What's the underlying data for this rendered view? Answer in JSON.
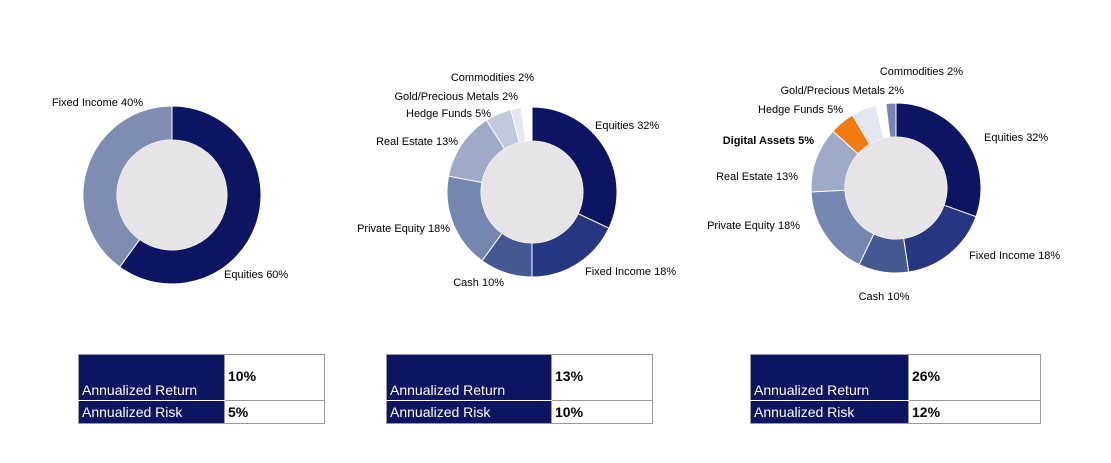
{
  "chart_data": [
    {
      "type": "pie",
      "variant": "donut",
      "slices": [
        {
          "label": "Equities 60%",
          "value": 60,
          "color": "#0d1563"
        },
        {
          "label": "Fixed Income 40%",
          "value": 40,
          "color": "#7f8db3"
        }
      ]
    },
    {
      "type": "pie",
      "variant": "donut",
      "slices": [
        {
          "label": "Equities 32%",
          "value": 32,
          "color": "#0d1563"
        },
        {
          "label": "Fixed Income 18%",
          "value": 18,
          "color": "#263680"
        },
        {
          "label": "Cash 10%",
          "value": 10,
          "color": "#465892"
        },
        {
          "label": "Private Equity 18%",
          "value": 18,
          "color": "#7586b0"
        },
        {
          "label": "Real Estate 13%",
          "value": 13,
          "color": "#9eaac8"
        },
        {
          "label": "Hedge Funds 5%",
          "value": 5,
          "color": "#c3c9dc"
        },
        {
          "label": "Gold/Precious Metals 2%",
          "value": 2,
          "color": "#e4e6f1"
        },
        {
          "label": "Commodities 2%",
          "value": 2,
          "color": "#ffffff"
        }
      ]
    },
    {
      "type": "pie",
      "variant": "donut",
      "slices": [
        {
          "label": "Equities 32%",
          "value": 32,
          "color": "#0d1563"
        },
        {
          "label": "Fixed Income 18%",
          "value": 18,
          "color": "#263680"
        },
        {
          "label": "Cash 10%",
          "value": 10,
          "color": "#465892"
        },
        {
          "label": "Private Equity 18%",
          "value": 18,
          "color": "#7586b0"
        },
        {
          "label": "Real Estate 13%",
          "value": 13,
          "color": "#9eaac8"
        },
        {
          "label": "Digital Assets 5%",
          "value": 5,
          "color": "#f37a0c",
          "highlight": true
        },
        {
          "label": "Hedge Funds 5%",
          "value": 5,
          "color": "#e4e6f1"
        },
        {
          "label": "Gold/Precious Metals 2%",
          "value": 2,
          "color": "#ffffff"
        },
        {
          "label": "Commodities 2%",
          "value": 2,
          "color": "#7586b0"
        }
      ]
    }
  ],
  "tables": [
    {
      "rows": [
        {
          "label": "Annualized Return",
          "value": "10%"
        },
        {
          "label": "Annualized Risk",
          "value": "5%"
        }
      ]
    },
    {
      "rows": [
        {
          "label": "Annualized Return",
          "value": "13%"
        },
        {
          "label": "Annualized Risk",
          "value": "10%"
        }
      ]
    },
    {
      "rows": [
        {
          "label": "Annualized Return",
          "value": "26%"
        },
        {
          "label": "Annualized Risk",
          "value": "12%"
        }
      ]
    }
  ],
  "colors": {
    "navy": "#0d1563",
    "highlight_orange": "#f37a0c",
    "donut_hole": "#e6e4e6"
  }
}
